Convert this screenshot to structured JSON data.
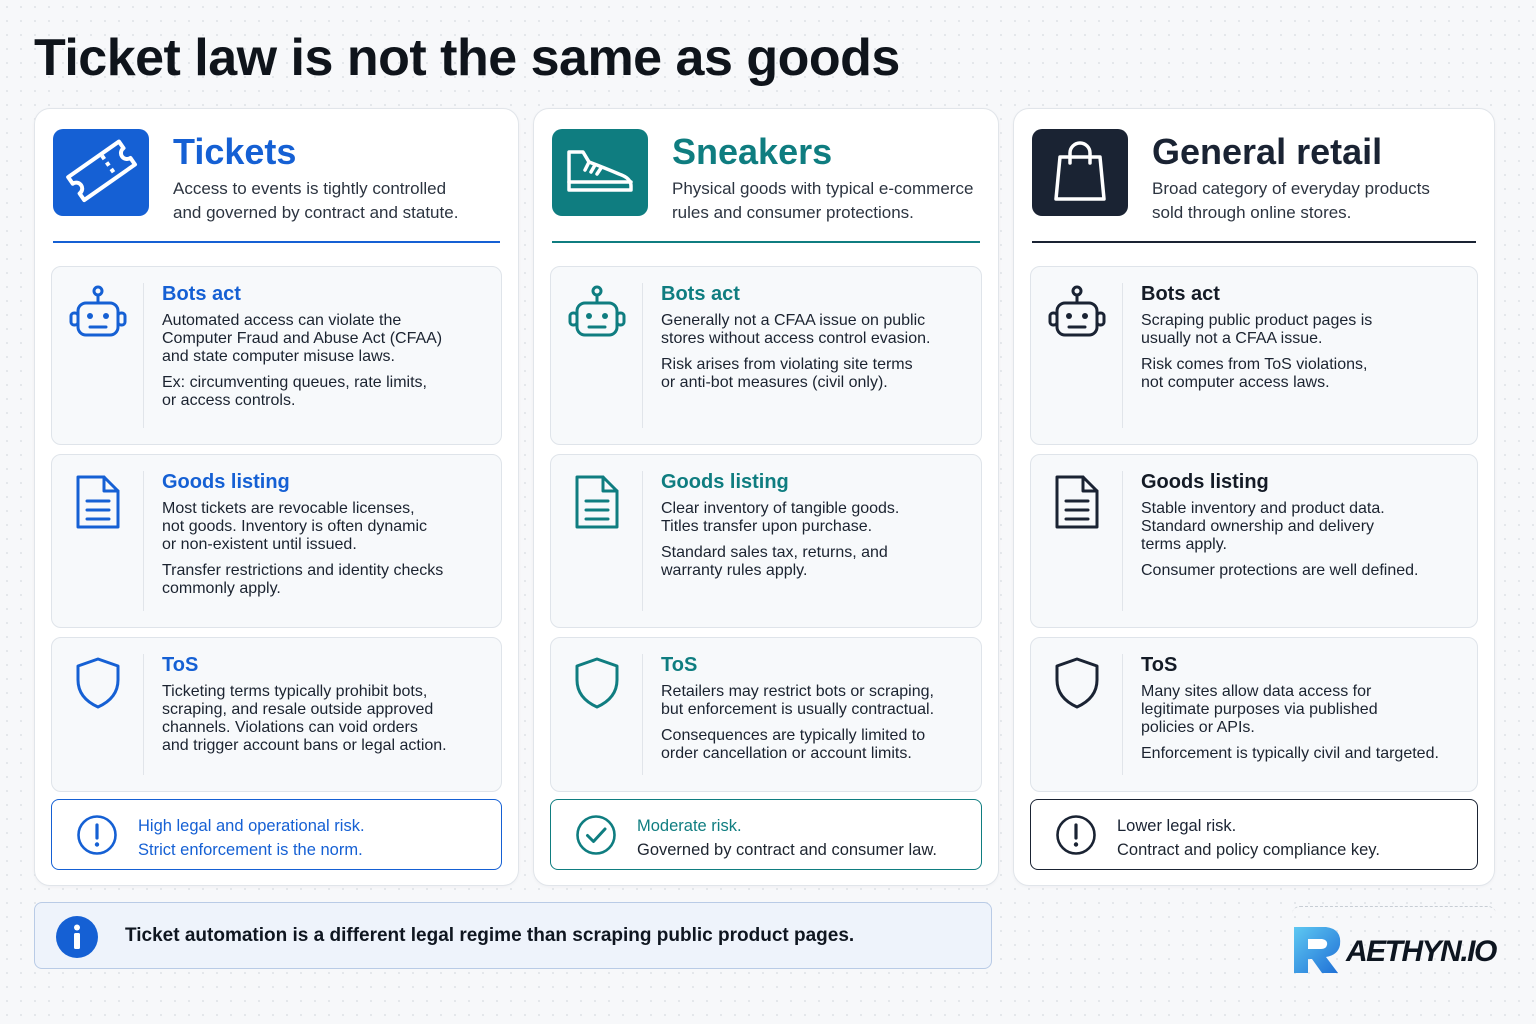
{
  "title": "Ticket law is not the same as goods",
  "colors": {
    "tickets": "#1560d4",
    "sneakers": "#0f7d80",
    "retail": "#1a2333"
  },
  "columns": [
    {
      "title": "Tickets",
      "icon": "ticket-icon",
      "subtitle": [
        "Access to events is tightly controlled",
        "and governed by contract and statute."
      ],
      "cards": [
        {
          "title": "Bots act",
          "icon": "robot-icon",
          "p1": [
            "Automated access can violate the",
            "Computer Fraud and Abuse Act (CFAA)",
            "and state computer misuse laws."
          ],
          "p2": [
            "Ex: circumventing queues, rate limits,",
            "or access controls."
          ]
        },
        {
          "title": "Goods listing",
          "icon": "document-icon",
          "p1": [
            "Most tickets are revocable licenses,",
            "not goods. Inventory is often dynamic",
            "or non-existent until issued."
          ],
          "p2": [
            "Transfer restrictions and identity checks",
            "commonly apply."
          ]
        },
        {
          "title": "ToS",
          "icon": "shield-icon",
          "p1": [
            "Ticketing terms typically prohibit bots,",
            "scraping, and resale outside approved",
            "channels. Violations can void orders",
            "and trigger account bans or legal action."
          ],
          "p2": []
        }
      ],
      "risk": {
        "icon": "exclamation-icon",
        "line1": "High legal and operational risk.",
        "line2": "Strict enforcement is the norm."
      }
    },
    {
      "title": "Sneakers",
      "icon": "sneaker-icon",
      "subtitle": [
        "Physical goods with typical e-commerce",
        "rules and consumer protections."
      ],
      "cards": [
        {
          "title": "Bots act",
          "icon": "robot-icon",
          "p1": [
            "Generally not a CFAA issue on public",
            "stores without access control evasion."
          ],
          "p2": [
            "Risk arises from violating site terms",
            "or anti-bot measures (civil only)."
          ]
        },
        {
          "title": "Goods listing",
          "icon": "document-icon",
          "p1": [
            "Clear inventory of tangible goods.",
            "Titles transfer upon purchase."
          ],
          "p2": [
            "Standard sales tax, returns, and",
            "warranty rules apply."
          ]
        },
        {
          "title": "ToS",
          "icon": "shield-icon",
          "p1": [
            "Retailers may restrict bots or scraping,",
            "but enforcement is usually contractual."
          ],
          "p2": [
            "Consequences are typically limited to",
            "order cancellation or account limits."
          ]
        }
      ],
      "risk": {
        "icon": "check-circle-icon",
        "line1": "Moderate risk.",
        "line2": "Governed by contract and consumer law."
      }
    },
    {
      "title": "General retail",
      "icon": "shopping-bag-icon",
      "subtitle": [
        "Broad category of everyday products",
        "sold through online stores."
      ],
      "cards": [
        {
          "title": "Bots act",
          "icon": "robot-icon",
          "p1": [
            "Scraping public product pages is",
            "usually not a CFAA issue."
          ],
          "p2": [
            "Risk comes from ToS violations,",
            "not computer access laws."
          ]
        },
        {
          "title": "Goods listing",
          "icon": "document-icon",
          "p1": [
            "Stable inventory and product data.",
            "Standard ownership and delivery",
            "terms apply."
          ],
          "p2": [
            "Consumer protections are well defined."
          ]
        },
        {
          "title": "ToS",
          "icon": "shield-icon",
          "p1": [
            "Many sites allow data access for",
            "legitimate purposes via published",
            "policies or APIs."
          ],
          "p2": [
            "Enforcement is typically civil and targeted."
          ]
        }
      ],
      "risk": {
        "icon": "exclamation-icon",
        "line1": "Lower legal risk.",
        "line2": "Contract and policy compliance key."
      }
    }
  ],
  "banner": {
    "icon": "info-icon",
    "text": "Ticket automation is a different legal regime than scraping public product pages."
  },
  "logo": {
    "text": "AETHYN.IO"
  }
}
